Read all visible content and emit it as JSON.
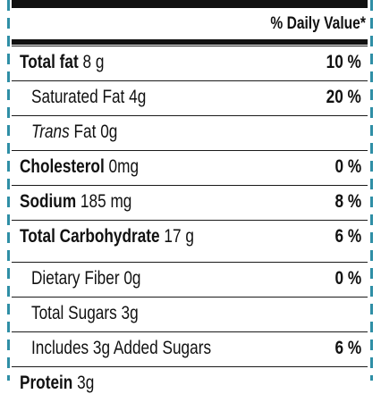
{
  "header": {
    "daily_value_label": "% Daily Value*"
  },
  "rows": [
    {
      "name": "Total fat",
      "amount": "8 g",
      "dv": "10 %"
    },
    {
      "name": "Saturated Fat 4g",
      "dv": "20 %"
    },
    {
      "name_italic": "Trans",
      "name_rest": "Fat 0g"
    },
    {
      "name": "Cholesterol",
      "amount": "0mg",
      "dv": "0 %"
    },
    {
      "name": "Sodium",
      "amount": "185 mg",
      "dv": "8 %"
    },
    {
      "name": "Total Carbohydrate",
      "amount": "17 g",
      "dv": "6 %"
    },
    {
      "name": "Dietary Fiber 0g",
      "dv": "0 %"
    },
    {
      "name": "Total Sugars 3g"
    },
    {
      "name": "Includes 3g Added Sugars",
      "dv": "6 %"
    },
    {
      "name": "Protein",
      "amount": "3g"
    }
  ],
  "colors": {
    "border_accent": "#2f8fa6",
    "text": "#111111",
    "background": "#ffffff"
  }
}
